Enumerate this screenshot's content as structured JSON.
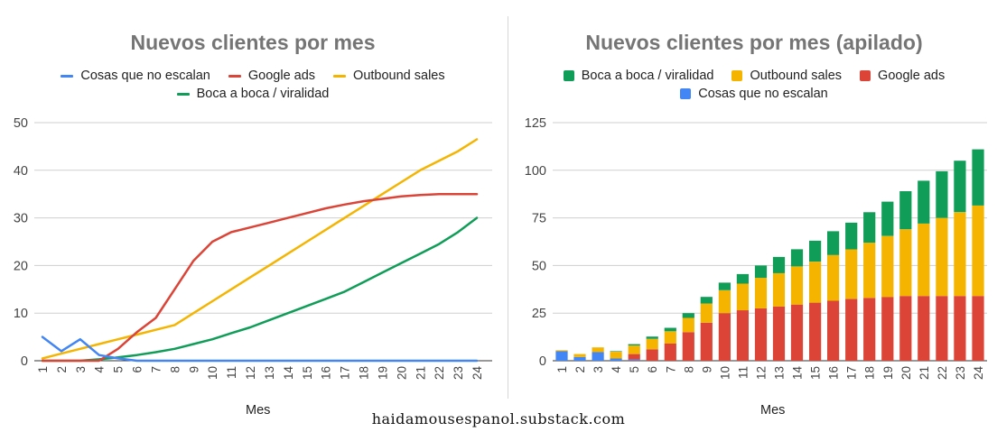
{
  "watermark": "haidamousespanol.substack.com",
  "chart_data": [
    {
      "type": "line",
      "title": "Nuevos clientes por mes",
      "xlabel": "Mes",
      "ylabel": "",
      "ylim": [
        0,
        50
      ],
      "yticks": [
        0,
        10,
        20,
        30,
        40,
        50
      ],
      "grid": true,
      "legend_position": "top",
      "x": [
        "1",
        "2",
        "3",
        "4",
        "5",
        "6",
        "7",
        "8",
        "9",
        "10",
        "11",
        "12",
        "13",
        "14",
        "15",
        "16",
        "17",
        "18",
        "19",
        "20",
        "21",
        "22",
        "23",
        "24"
      ],
      "series": [
        {
          "name": "Cosas que no escalan",
          "color": "#4285f4",
          "values": [
            5,
            2,
            4.5,
            1.2,
            0.5,
            0,
            0,
            0,
            0,
            0,
            0,
            0,
            0,
            0,
            0,
            0,
            0,
            0,
            0,
            0,
            0,
            0,
            0,
            0
          ]
        },
        {
          "name": "Google ads",
          "color": "#db4437",
          "values": [
            0,
            0,
            0,
            0,
            2.5,
            6,
            9,
            15,
            21,
            25,
            27,
            28,
            29,
            30,
            31,
            32,
            32.8,
            33.5,
            34,
            34.5,
            34.8,
            35,
            35,
            35
          ]
        },
        {
          "name": "Outbound sales",
          "color": "#f4b400",
          "values": [
            0.5,
            1.5,
            2.5,
            3.5,
            4.5,
            5.5,
            6.5,
            7.5,
            10,
            12.5,
            15,
            17.5,
            20,
            22.5,
            25,
            27.5,
            30,
            32.5,
            35,
            37.5,
            40,
            42,
            44,
            46.5
          ]
        },
        {
          "name": "Boca a boca / viralidad",
          "color": "#0f9d58",
          "values": [
            0,
            0,
            0,
            0.3,
            0.7,
            1.2,
            1.8,
            2.5,
            3.5,
            4.5,
            5.8,
            7,
            8.5,
            10,
            11.5,
            13,
            14.5,
            16.5,
            18.5,
            20.5,
            22.5,
            24.5,
            27,
            30
          ]
        }
      ]
    },
    {
      "type": "bar",
      "stacked": true,
      "title": "Nuevos clientes por mes (apilado)",
      "xlabel": "Mes",
      "ylabel": "",
      "ylim": [
        0,
        125
      ],
      "yticks": [
        0,
        25,
        50,
        75,
        100,
        125
      ],
      "grid": true,
      "legend_position": "top",
      "categories": [
        "1",
        "2",
        "3",
        "4",
        "5",
        "6",
        "7",
        "8",
        "9",
        "10",
        "11",
        "12",
        "13",
        "14",
        "15",
        "16",
        "17",
        "18",
        "19",
        "20",
        "21",
        "22",
        "23",
        "24"
      ],
      "series": [
        {
          "name": "Cosas que no escalan",
          "color": "#4285f4",
          "values": [
            5,
            2,
            4.5,
            1.2,
            0.5,
            0,
            0,
            0,
            0,
            0,
            0,
            0,
            0,
            0,
            0,
            0,
            0,
            0,
            0,
            0,
            0,
            0,
            0,
            0
          ]
        },
        {
          "name": "Google ads",
          "color": "#db4437",
          "values": [
            0,
            0,
            0,
            0,
            3,
            6,
            9,
            15,
            20,
            25,
            26.5,
            27.5,
            28.5,
            29.5,
            30.5,
            31.5,
            32.5,
            33,
            33.5,
            34,
            34,
            34,
            34,
            34
          ]
        },
        {
          "name": "Outbound sales",
          "color": "#f4b400",
          "values": [
            0.5,
            1.5,
            2.5,
            3.5,
            4.5,
            5.5,
            6.5,
            7.5,
            10,
            12,
            14,
            16,
            17.5,
            20,
            21.5,
            24,
            26,
            29,
            32,
            35,
            38,
            41,
            44,
            47.5
          ]
        },
        {
          "name": "Boca a boca / viralidad",
          "color": "#0f9d58",
          "values": [
            0,
            0,
            0,
            0.3,
            0.7,
            1.2,
            1.8,
            2.5,
            3.5,
            4,
            5,
            6.5,
            8.5,
            9,
            11,
            12.5,
            14,
            16,
            18,
            20,
            22.5,
            24.5,
            27,
            29.5
          ]
        }
      ]
    }
  ],
  "legend_left": {
    "row1": [
      "Cosas que no escalan",
      "Google ads",
      "Outbound sales"
    ],
    "row2": [
      "Boca a boca / viralidad"
    ]
  },
  "legend_right": {
    "row1": [
      "Boca a boca / viralidad",
      "Outbound sales",
      "Google ads"
    ],
    "row2": [
      "Cosas que no escalan"
    ]
  }
}
